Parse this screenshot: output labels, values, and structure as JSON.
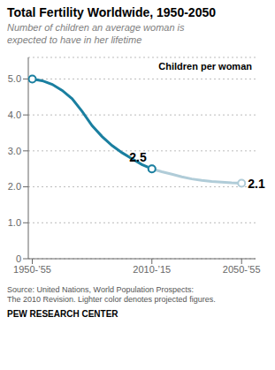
{
  "chart_data": {
    "type": "line",
    "title": "Total Fertility Worldwide, 1950-2050",
    "subtitle": "Number of children an average woman is\nexpected to have in her lifetime",
    "ylabel": "Children per woman",
    "source": "Source: United Nations, World Population Prospects:\nThe 2010 Revision. Lighter color denotes projected figures.",
    "footer": "PEW RESEARCH CENTER",
    "x": [
      1950,
      1955,
      1960,
      1965,
      1970,
      1975,
      1980,
      1985,
      1990,
      1995,
      2000,
      2005,
      2010,
      2015,
      2020,
      2025,
      2030,
      2035,
      2040,
      2045,
      2050,
      2055
    ],
    "series": [
      {
        "color": "#1a7fa0",
        "marker": "o",
        "values": [
          5.0,
          4.95,
          4.85,
          4.68,
          4.45,
          4.1,
          3.7,
          3.4,
          3.15,
          2.95,
          2.78,
          2.62,
          2.5,
          null,
          null,
          null,
          null,
          null,
          null,
          null,
          null,
          null
        ]
      },
      {
        "color": "#b0ccd8",
        "marker": "o",
        "values": [
          null,
          null,
          null,
          null,
          null,
          null,
          null,
          null,
          null,
          null,
          null,
          null,
          2.5,
          2.42,
          2.35,
          2.28,
          2.22,
          2.18,
          2.15,
          2.13,
          2.11,
          2.1
        ]
      }
    ],
    "annotations": [
      {
        "text": "2.5",
        "x": 2010,
        "y": 2.5
      },
      {
        "text": "2.1",
        "x": 2055,
        "y": 2.1
      }
    ],
    "xlim": [
      1948,
      2062
    ],
    "ylim": [
      0,
      5.6
    ],
    "xticks": [
      {
        "value": 1950,
        "label": "1950-’55"
      },
      {
        "value": 2010,
        "label": "2010-’15"
      },
      {
        "value": 2055,
        "label": "2050-’55"
      }
    ],
    "yticks": [
      0,
      {
        "value": 1.0,
        "label": "1.0"
      },
      {
        "value": 2.0,
        "label": "2.0"
      },
      {
        "value": 3.0,
        "label": "3.0"
      },
      {
        "value": 4.0,
        "label": "4.0"
      },
      {
        "value": 5.0,
        "label": "5.0"
      }
    ],
    "grid": true
  }
}
